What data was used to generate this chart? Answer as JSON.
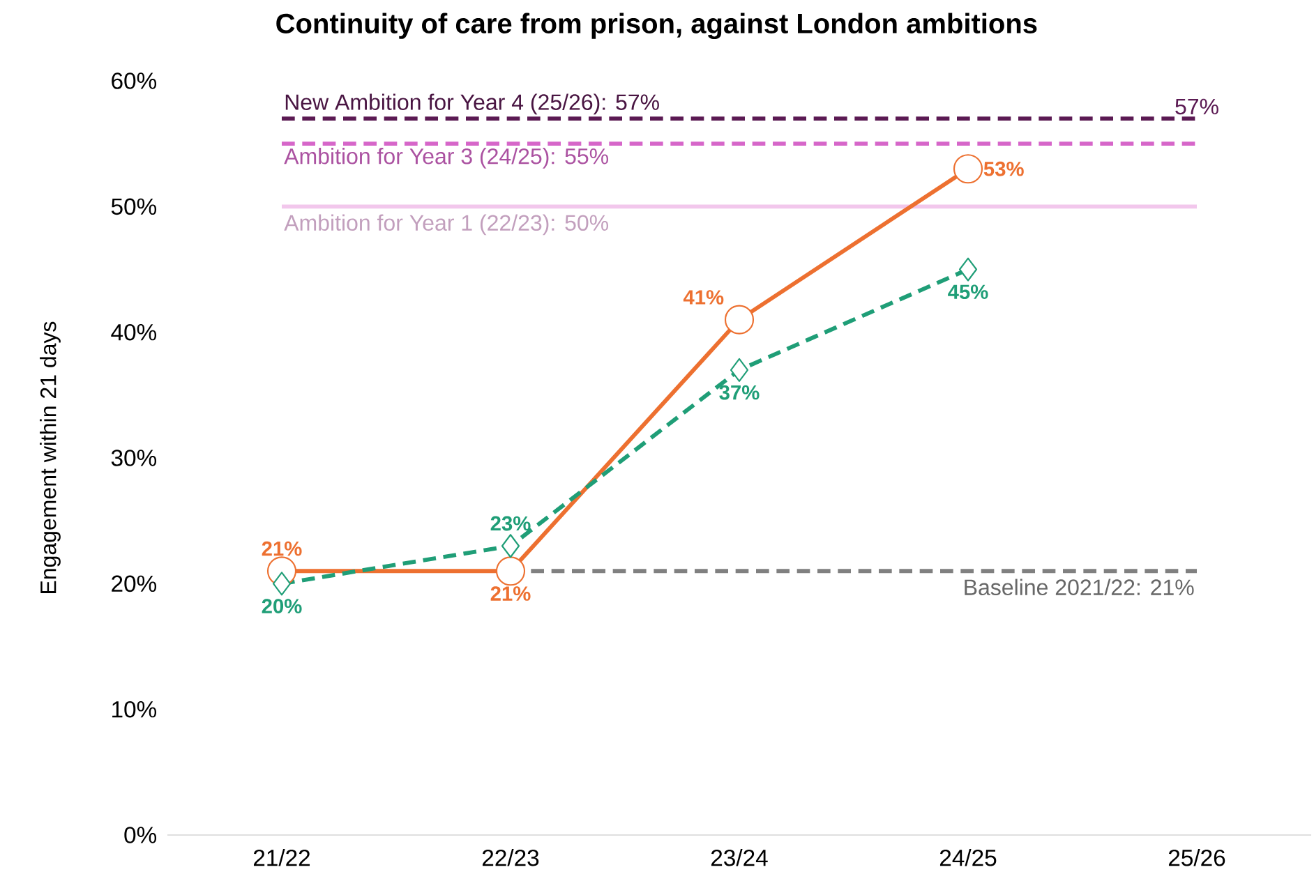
{
  "chart_data": {
    "type": "line",
    "title": "Continuity of care from prison, against London ambitions",
    "ylabel": "Engagement within 21 days",
    "categories": [
      "21/22",
      "22/23",
      "23/24",
      "24/25",
      "25/26"
    ],
    "ylim": [
      0,
      60
    ],
    "yticks": [
      {
        "value": 0,
        "label": "0%"
      },
      {
        "value": 10,
        "label": "10%"
      },
      {
        "value": 20,
        "label": "20%"
      },
      {
        "value": 30,
        "label": "30%"
      },
      {
        "value": 40,
        "label": "40%"
      },
      {
        "value": 50,
        "label": "50%"
      },
      {
        "value": 60,
        "label": "60%"
      }
    ],
    "grid": false,
    "series": [
      {
        "name": "New Ambition for Year 4 (25/26): 57%",
        "color": "#5b1a53",
        "line_style": "dashed",
        "marker": "none",
        "values": [
          57,
          57,
          57,
          57,
          57
        ]
      },
      {
        "name": "Ambition for Year 3 (24/25): 55%",
        "color": "#d666c9",
        "line_style": "dashed",
        "marker": "none",
        "values": [
          55,
          55,
          55,
          55,
          55
        ]
      },
      {
        "name": "Ambition for Year 1 (22/23): 50%",
        "color": "#f2c7ec",
        "line_style": "solid",
        "marker": "none",
        "values": [
          50,
          50,
          50,
          50,
          50
        ]
      },
      {
        "name": "Baseline 2021/22: 21%",
        "color": "#808080",
        "line_style": "dashed",
        "marker": "none",
        "values": [
          null,
          21,
          21,
          21,
          21
        ]
      },
      {
        "color": "#ed7030",
        "line_style": "solid",
        "marker": "circle",
        "values": [
          21,
          21,
          41,
          53,
          null
        ],
        "value_labels": [
          "21%",
          "21%",
          "41%",
          "53%",
          null
        ]
      },
      {
        "color": "#1f9e77",
        "line_style": "dashed",
        "marker": "diamond",
        "values": [
          20,
          23,
          37,
          45,
          null
        ],
        "value_labels": [
          "20%",
          "23%",
          "37%",
          "45%",
          null
        ]
      }
    ],
    "annotations": [
      {
        "text": "57%",
        "x": "25/26",
        "y": 57
      }
    ]
  }
}
